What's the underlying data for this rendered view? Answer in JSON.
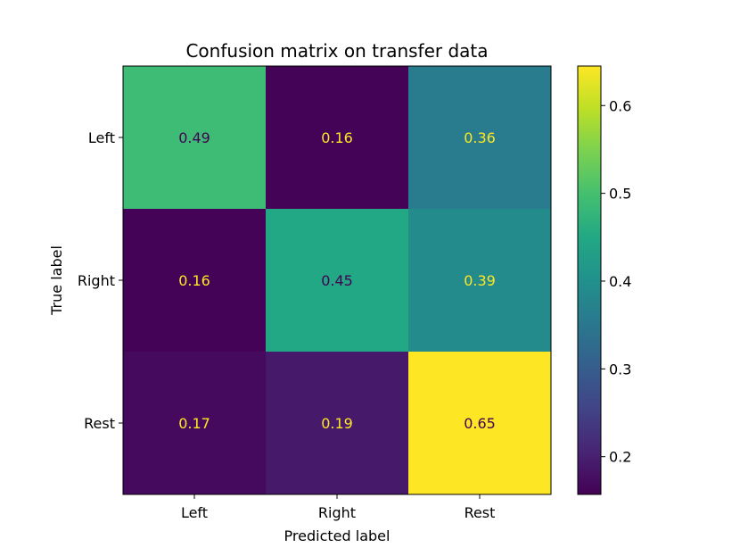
{
  "chart_data": {
    "type": "heatmap",
    "title": "Confusion matrix on transfer data",
    "xlabel": "Predicted label",
    "ylabel": "True label",
    "x_categories": [
      "Left",
      "Right",
      "Rest"
    ],
    "y_categories": [
      "Left",
      "Right",
      "Rest"
    ],
    "values": [
      [
        0.49,
        0.16,
        0.36
      ],
      [
        0.16,
        0.45,
        0.39
      ],
      [
        0.17,
        0.19,
        0.65
      ]
    ],
    "value_labels": [
      [
        "0.49",
        "0.16",
        "0.36"
      ],
      [
        "0.16",
        "0.45",
        "0.39"
      ],
      [
        "0.17",
        "0.19",
        "0.65"
      ]
    ],
    "colormap": "viridis",
    "color_range": [
      0.157,
      0.645
    ],
    "colorbar_ticks": [
      0.2,
      0.3,
      0.4,
      0.5,
      0.6
    ],
    "colorbar_tick_labels": [
      "0.2",
      "0.3",
      "0.4",
      "0.5",
      "0.6"
    ],
    "text_color_light": "#fde725",
    "text_color_dark": "#440154"
  }
}
